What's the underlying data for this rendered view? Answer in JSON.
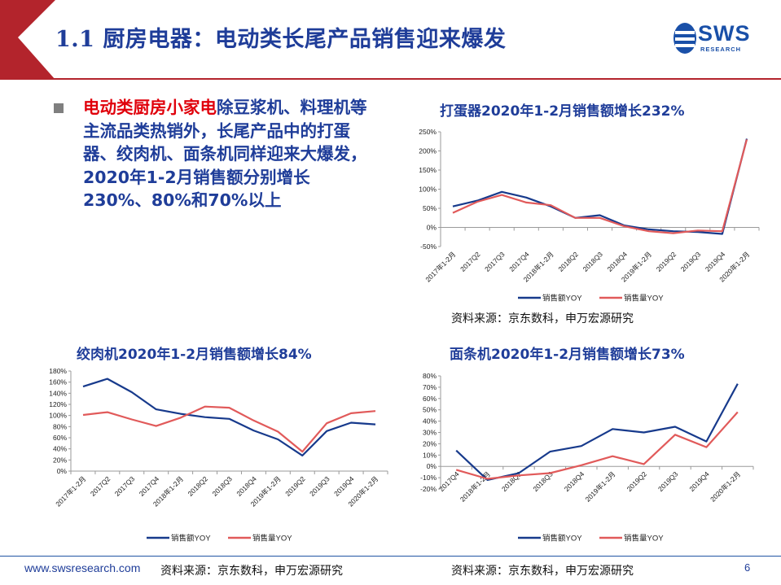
{
  "header": {
    "title": "1.1 厨房电器：电动类长尾产品销售迎来爆发",
    "logo_text": "SWS",
    "logo_sub": "RESEARCH"
  },
  "bullet": {
    "highlight": "电动类厨房小家电",
    "text": "除豆浆机、料理机等主流品类热销外，长尾产品中的打蛋器、绞肉机、面条机同样迎来大爆发，2020年1-2月销售额分别增长230%、80%和70%以上"
  },
  "sources": {
    "top_right": "资料来源：京东数科，申万宏源研究",
    "bottom_left": "资料来源：京东数科，申万宏源研究",
    "bottom_right": "资料来源：京东数科，申万宏源研究"
  },
  "footer": {
    "url": "www.swsresearch.com",
    "page": "6"
  },
  "colors": {
    "sales_amount": "#173a8c",
    "sales_volume": "#e15a5a",
    "accent_red": "#b3242c",
    "title_blue": "#1f3d99"
  },
  "chart_data": [
    {
      "type": "line",
      "title": "打蛋器2020年1-2月销售额增长232%",
      "categories": [
        "2017年1-2月",
        "2017Q2",
        "2017Q3",
        "2017Q4",
        "2018年1-2月",
        "2018Q2",
        "2018Q3",
        "2018Q4",
        "2019年1-2月",
        "2019Q2",
        "2019Q3",
        "2019Q4",
        "2020年1-2月"
      ],
      "series": [
        {
          "name": "销售额YOY",
          "values": [
            55,
            70,
            93,
            78,
            55,
            25,
            32,
            5,
            -5,
            -10,
            -12,
            -17,
            232
          ]
        },
        {
          "name": "销售量YOY",
          "values": [
            38,
            67,
            85,
            65,
            58,
            25,
            25,
            3,
            -10,
            -15,
            -8,
            -10,
            230
          ]
        }
      ],
      "ylim": [
        -50,
        250
      ],
      "yticks": [
        -50,
        0,
        50,
        100,
        150,
        200,
        250
      ],
      "grid": false,
      "legend": "bottom"
    },
    {
      "type": "line",
      "title": "绞肉机2020年1-2月销售额增长84%",
      "categories": [
        "2017年1-2月",
        "2017Q2",
        "2017Q3",
        "2017Q4",
        "2018年1-2月",
        "2018Q2",
        "2018Q3",
        "2018Q4",
        "2019年1-2月",
        "2019Q2",
        "2019Q3",
        "2019Q4",
        "2020年1-2月"
      ],
      "series": [
        {
          "name": "销售额YOY",
          "values": [
            152,
            166,
            142,
            111,
            103,
            97,
            94,
            73,
            57,
            28,
            72,
            87,
            84
          ]
        },
        {
          "name": "销售量YOY",
          "values": [
            101,
            106,
            93,
            81,
            96,
            116,
            114,
            91,
            71,
            35,
            86,
            104,
            108
          ]
        }
      ],
      "ylim": [
        0,
        180
      ],
      "yticks": [
        0,
        20,
        40,
        60,
        80,
        100,
        120,
        140,
        160,
        180
      ],
      "grid": false,
      "legend": "bottom"
    },
    {
      "type": "line",
      "title": "面条机2020年1-2月销售额增长73%",
      "categories": [
        "2017Q4",
        "2018年1-2月",
        "2018Q2",
        "2018Q3",
        "2018Q4",
        "2019年1-2月",
        "2019Q2",
        "2019Q3",
        "2019Q4",
        "2020年1-2月"
      ],
      "series": [
        {
          "name": "销售额YOY",
          "values": [
            14,
            -12,
            -6,
            13,
            18,
            33,
            30,
            35,
            22,
            73
          ]
        },
        {
          "name": "销售量YOY",
          "values": [
            -3,
            -11,
            -8,
            -6,
            1,
            9,
            2,
            28,
            17,
            48
          ]
        }
      ],
      "ylim": [
        -20,
        80
      ],
      "yticks": [
        -20,
        -10,
        0,
        10,
        20,
        30,
        40,
        50,
        60,
        70,
        80
      ],
      "grid": false,
      "legend": "bottom"
    }
  ]
}
